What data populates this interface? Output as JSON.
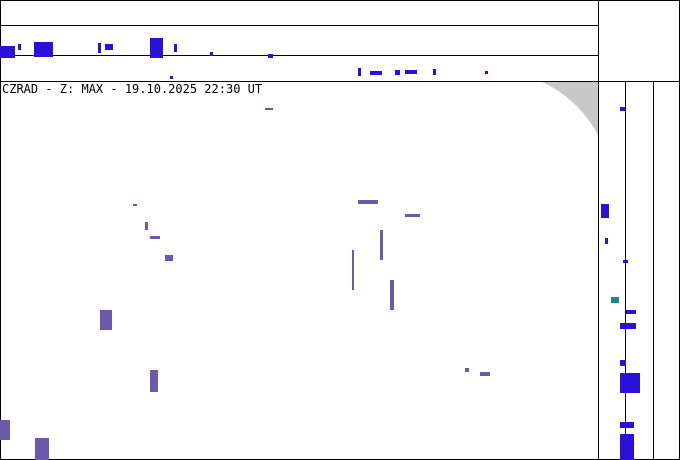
{
  "header": {
    "title": "CZRAD - Z: MAX - 19.10.2025 22:30 UT"
  }
}
